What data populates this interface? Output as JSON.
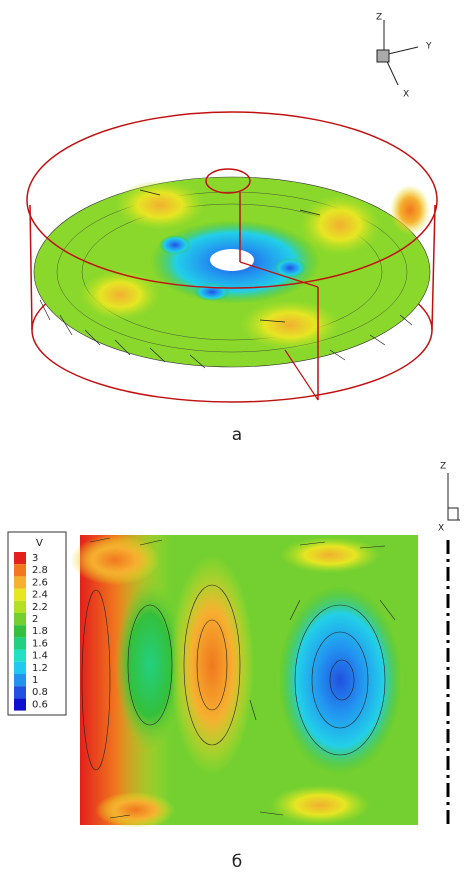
{
  "panel_a": {
    "label": "а",
    "axes": {
      "z": "Z",
      "y": "Y",
      "x": "X"
    }
  },
  "panel_b": {
    "label": "б",
    "axes": {
      "z": "Z",
      "x": "X"
    },
    "legend": {
      "title": "V",
      "levels": [
        {
          "value": 3,
          "color": "#e3201b"
        },
        {
          "value": 2.8,
          "color": "#f0781e"
        },
        {
          "value": 2.6,
          "color": "#f6b030"
        },
        {
          "value": 2.4,
          "color": "#e6e623"
        },
        {
          "value": 2.2,
          "color": "#b4e024"
        },
        {
          "value": 2,
          "color": "#74d030"
        },
        {
          "value": 1.8,
          "color": "#34c03c"
        },
        {
          "value": 1.6,
          "color": "#22d080"
        },
        {
          "value": 1.4,
          "color": "#22e0c4"
        },
        {
          "value": 1.2,
          "color": "#22c8f0"
        },
        {
          "value": 1,
          "color": "#2294f0"
        },
        {
          "value": 0.8,
          "color": "#2250e0"
        },
        {
          "value": 0.6,
          "color": "#1010d0"
        }
      ]
    }
  }
}
